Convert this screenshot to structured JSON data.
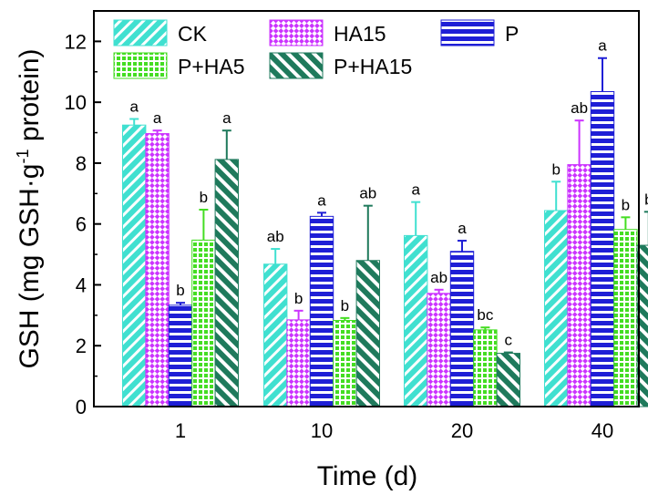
{
  "chart_data": {
    "type": "bar",
    "title": "",
    "xlabel": "Time (d)",
    "ylabel_main": "GSH (mg GSH·g",
    "ylabel_sup": "-1",
    "ylabel_tail": " protein)",
    "ylim": [
      0,
      13
    ],
    "yticks": [
      0,
      2,
      4,
      6,
      8,
      10,
      12
    ],
    "categories": [
      "1",
      "10",
      "20",
      "40"
    ],
    "legend_placement": "top",
    "series": [
      {
        "name": "CK",
        "pattern": "diag-fwd",
        "color": "#40e0d0",
        "values": [
          9.25,
          4.68,
          5.62,
          6.44
        ],
        "errors": [
          0.2,
          0.5,
          1.1,
          0.95
        ],
        "labels": [
          "a",
          "ab",
          "a",
          "b"
        ]
      },
      {
        "name": "HA15",
        "pattern": "crosshatch",
        "color": "#cc33ff",
        "values": [
          8.97,
          2.85,
          3.72,
          7.95
        ],
        "errors": [
          0.1,
          0.3,
          0.12,
          1.45
        ],
        "labels": [
          "a",
          "b",
          "ab",
          "ab"
        ]
      },
      {
        "name": "P",
        "pattern": "hstripe",
        "color": "#1f1fd6",
        "values": [
          3.33,
          6.25,
          5.1,
          10.35
        ],
        "errors": [
          0.08,
          0.12,
          0.35,
          1.1
        ],
        "labels": [
          "b",
          "a",
          "a",
          "a"
        ]
      },
      {
        "name": "P+HA5",
        "pattern": "grid",
        "color": "#44dd22",
        "values": [
          5.47,
          2.83,
          2.52,
          5.82
        ],
        "errors": [
          1.0,
          0.08,
          0.08,
          0.4
        ],
        "labels": [
          "b",
          "b",
          "bc",
          "b"
        ]
      },
      {
        "name": "P+HA15",
        "pattern": "diag-back",
        "color": "#1f7a5c",
        "values": [
          8.12,
          4.8,
          1.75,
          5.3
        ],
        "errors": [
          0.95,
          1.8,
          0.03,
          1.1
        ],
        "labels": [
          "a",
          "ab",
          "c",
          "b"
        ]
      }
    ]
  }
}
